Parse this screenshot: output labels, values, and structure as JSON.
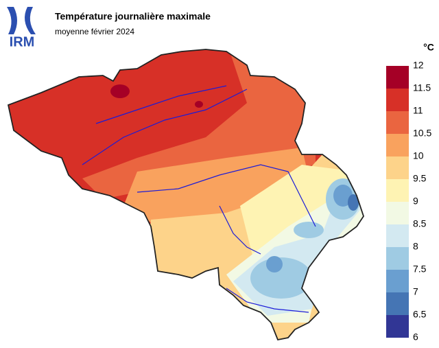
{
  "chart_data": {
    "type": "choropleth",
    "title": "Température journalière maximale",
    "subtitle": "moyenne février 2024",
    "logo": "IRM",
    "unit": "°C",
    "clim": [
      6,
      12
    ],
    "ticks": [
      6,
      6.5,
      7,
      7.5,
      8,
      8.5,
      9,
      9.5,
      10,
      10.5,
      11,
      11.5,
      12
    ],
    "colors": [
      "#313695",
      "#4575b4",
      "#6a9fd0",
      "#9fcbe3",
      "#d3e9f1",
      "#f2f9e4",
      "#fef3b3",
      "#fdd38a",
      "#f9a25e",
      "#ea6540",
      "#d73027",
      "#a50026"
    ]
  }
}
